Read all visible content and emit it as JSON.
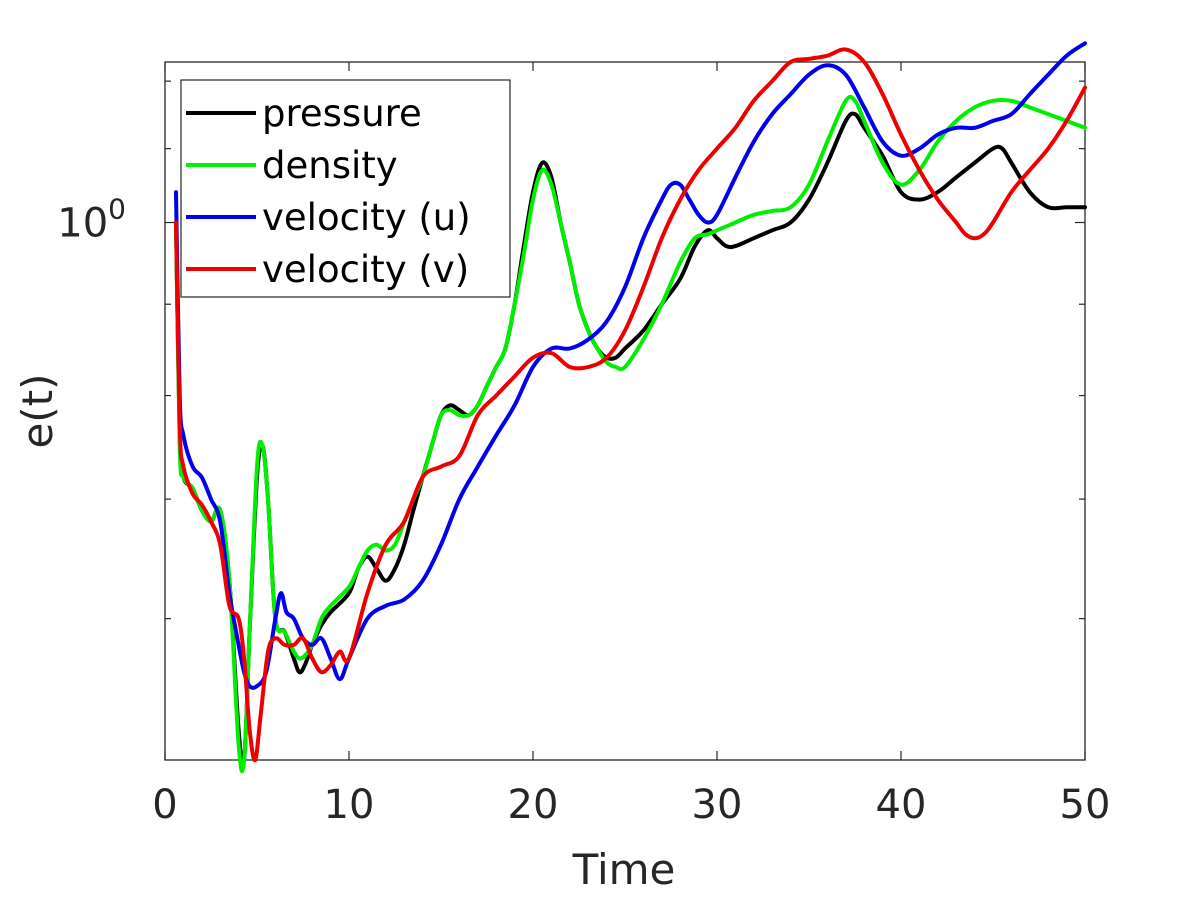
{
  "chart_data": {
    "type": "line",
    "title": "",
    "xlabel": "Time",
    "ylabel": "e(t)",
    "xlim": [
      0,
      50
    ],
    "ylim": [
      0.5,
      1.23
    ],
    "y_scale": "log",
    "grid": false,
    "legend_position": "top-left",
    "x_ticks": [
      0,
      10,
      20,
      30,
      40,
      50
    ],
    "x_tick_labels": [
      "0",
      "10",
      "20",
      "30",
      "40",
      "50"
    ],
    "y_tick_label": {
      "base": "10",
      "exponent": "0"
    },
    "y_tick_label_value": 1.0,
    "y_minor_ticks": [
      0.6,
      0.7,
      0.8,
      0.9,
      1.1,
      1.2
    ],
    "series": [
      {
        "name": "pressure",
        "color": "#000000",
        "x": [
          0.6,
          0.8,
          1.0,
          1.5,
          2.0,
          2.5,
          3.0,
          3.5,
          4.0,
          4.3,
          4.6,
          5.0,
          5.3,
          5.6,
          6.0,
          6.5,
          7.0,
          7.3,
          7.6,
          8.0,
          8.5,
          9.0,
          10.0,
          10.5,
          11.0,
          11.5,
          12.0,
          12.5,
          13.0,
          13.5,
          14.0,
          14.5,
          15.0,
          15.5,
          16.0,
          16.5,
          17.0,
          17.5,
          18.0,
          18.5,
          19.0,
          19.5,
          20.0,
          20.5,
          21.0,
          21.5,
          22.0,
          22.5,
          23.0,
          23.5,
          24.0,
          24.5,
          25.0,
          26.0,
          27.0,
          28.0,
          28.8,
          29.5,
          30.0,
          30.5,
          31.0,
          32.0,
          33.0,
          34.0,
          35.0,
          36.0,
          37.0,
          37.5,
          38.0,
          39.0,
          40.0,
          41.0,
          42.0,
          43.0,
          44.0,
          45.0,
          45.5,
          46.0,
          47.0,
          48.0,
          49.0,
          50.0
        ],
        "values": [
          1.0,
          0.76,
          0.72,
          0.71,
          0.69,
          0.68,
          0.69,
          0.63,
          0.52,
          0.5,
          0.59,
          0.72,
          0.75,
          0.7,
          0.6,
          0.59,
          0.57,
          0.56,
          0.565,
          0.58,
          0.595,
          0.605,
          0.62,
          0.64,
          0.65,
          0.64,
          0.63,
          0.64,
          0.66,
          0.69,
          0.72,
          0.75,
          0.78,
          0.79,
          0.785,
          0.78,
          0.79,
          0.81,
          0.83,
          0.85,
          0.9,
          0.97,
          1.04,
          1.08,
          1.06,
          1.0,
          0.95,
          0.9,
          0.87,
          0.85,
          0.84,
          0.84,
          0.85,
          0.87,
          0.9,
          0.93,
          0.97,
          0.99,
          0.98,
          0.97,
          0.97,
          0.98,
          0.99,
          1.0,
          1.03,
          1.08,
          1.14,
          1.15,
          1.13,
          1.09,
          1.04,
          1.03,
          1.04,
          1.06,
          1.08,
          1.1,
          1.1,
          1.08,
          1.04,
          1.02,
          1.02,
          1.02
        ]
      },
      {
        "name": "density",
        "color": "#00ee00",
        "x": [
          0.6,
          0.8,
          1.0,
          1.5,
          2.0,
          2.5,
          3.0,
          3.5,
          4.0,
          4.3,
          4.6,
          5.0,
          5.3,
          5.6,
          6.0,
          6.5,
          7.0,
          7.3,
          7.6,
          8.0,
          8.5,
          9.0,
          10.0,
          10.5,
          11.0,
          11.5,
          12.0,
          12.5,
          13.0,
          13.5,
          14.0,
          14.5,
          15.0,
          15.5,
          16.0,
          16.5,
          17.0,
          17.5,
          18.0,
          18.5,
          19.0,
          19.5,
          20.0,
          20.5,
          21.0,
          21.5,
          22.0,
          22.5,
          23.0,
          23.5,
          24.0,
          24.5,
          25.0,
          26.0,
          27.0,
          28.0,
          28.8,
          29.5,
          30.0,
          31.0,
          32.0,
          33.0,
          34.0,
          35.0,
          36.0,
          37.0,
          37.5,
          38.0,
          39.0,
          40.0,
          41.0,
          42.0,
          43.0,
          44.0,
          45.0,
          46.0,
          47.0,
          48.0,
          49.0,
          50.0
        ],
        "values": [
          1.0,
          0.75,
          0.72,
          0.71,
          0.69,
          0.68,
          0.69,
          0.63,
          0.51,
          0.5,
          0.59,
          0.73,
          0.75,
          0.7,
          0.6,
          0.59,
          0.575,
          0.57,
          0.572,
          0.58,
          0.6,
          0.61,
          0.625,
          0.64,
          0.655,
          0.66,
          0.655,
          0.66,
          0.68,
          0.7,
          0.72,
          0.75,
          0.78,
          0.785,
          0.78,
          0.78,
          0.79,
          0.81,
          0.83,
          0.85,
          0.9,
          0.96,
          1.03,
          1.07,
          1.05,
          1.0,
          0.95,
          0.9,
          0.87,
          0.85,
          0.835,
          0.83,
          0.83,
          0.86,
          0.9,
          0.95,
          0.98,
          0.985,
          0.99,
          1.0,
          1.01,
          1.015,
          1.02,
          1.05,
          1.11,
          1.17,
          1.17,
          1.14,
          1.08,
          1.05,
          1.07,
          1.11,
          1.14,
          1.16,
          1.17,
          1.17,
          1.16,
          1.15,
          1.14,
          1.13
        ]
      },
      {
        "name": "velocity (u)",
        "color": "#0000ee",
        "x": [
          0.6,
          0.8,
          1.0,
          1.5,
          2.0,
          2.5,
          3.0,
          3.5,
          4.0,
          4.3,
          4.6,
          5.0,
          5.5,
          6.0,
          6.3,
          6.6,
          7.0,
          7.5,
          8.0,
          8.5,
          9.0,
          9.5,
          10.0,
          11.0,
          12.0,
          13.0,
          14.0,
          15.0,
          16.0,
          17.0,
          18.0,
          19.0,
          20.0,
          21.0,
          22.0,
          23.0,
          24.0,
          25.0,
          26.0,
          27.0,
          27.5,
          28.0,
          28.5,
          29.0,
          29.5,
          30.0,
          31.0,
          32.0,
          33.0,
          34.0,
          35.0,
          36.0,
          37.0,
          38.0,
          39.0,
          40.0,
          41.0,
          42.0,
          43.0,
          44.0,
          45.0,
          46.0,
          47.0,
          48.0,
          49.0,
          50.0
        ],
        "values": [
          1.04,
          0.8,
          0.76,
          0.73,
          0.72,
          0.7,
          0.68,
          0.62,
          0.58,
          0.56,
          0.55,
          0.55,
          0.56,
          0.6,
          0.62,
          0.605,
          0.6,
          0.585,
          0.58,
          0.585,
          0.57,
          0.555,
          0.57,
          0.6,
          0.61,
          0.615,
          0.63,
          0.66,
          0.7,
          0.73,
          0.76,
          0.79,
          0.83,
          0.85,
          0.85,
          0.86,
          0.88,
          0.92,
          0.98,
          1.03,
          1.05,
          1.05,
          1.03,
          1.01,
          1.0,
          1.01,
          1.06,
          1.11,
          1.15,
          1.18,
          1.21,
          1.225,
          1.21,
          1.16,
          1.11,
          1.09,
          1.1,
          1.12,
          1.13,
          1.13,
          1.14,
          1.15,
          1.18,
          1.21,
          1.24,
          1.26
        ]
      },
      {
        "name": "velocity (v)",
        "color": "#ee0000",
        "x": [
          0.6,
          0.8,
          1.0,
          1.5,
          2.0,
          2.5,
          3.0,
          3.5,
          4.0,
          4.3,
          4.6,
          4.9,
          5.2,
          5.6,
          6.0,
          6.5,
          7.0,
          7.5,
          8.0,
          8.5,
          9.0,
          9.5,
          10.0,
          11.0,
          12.0,
          13.0,
          14.0,
          15.0,
          16.0,
          17.0,
          18.0,
          19.0,
          20.0,
          21.0,
          22.0,
          23.0,
          24.0,
          25.0,
          26.0,
          27.0,
          28.0,
          29.0,
          30.0,
          31.0,
          32.0,
          33.0,
          34.0,
          35.0,
          36.0,
          37.0,
          38.0,
          39.0,
          40.0,
          41.0,
          42.0,
          43.0,
          43.5,
          44.0,
          44.5,
          45.0,
          46.0,
          47.0,
          48.0,
          49.0,
          50.0
        ],
        "values": [
          1.0,
          0.77,
          0.73,
          0.705,
          0.695,
          0.68,
          0.66,
          0.61,
          0.6,
          0.57,
          0.52,
          0.5,
          0.53,
          0.575,
          0.585,
          0.58,
          0.58,
          0.585,
          0.57,
          0.56,
          0.565,
          0.575,
          0.57,
          0.62,
          0.66,
          0.68,
          0.72,
          0.73,
          0.74,
          0.78,
          0.8,
          0.82,
          0.84,
          0.845,
          0.83,
          0.83,
          0.84,
          0.87,
          0.92,
          0.98,
          1.03,
          1.07,
          1.1,
          1.13,
          1.17,
          1.2,
          1.23,
          1.235,
          1.24,
          1.25,
          1.23,
          1.18,
          1.12,
          1.07,
          1.03,
          1.0,
          0.985,
          0.98,
          0.985,
          1.0,
          1.04,
          1.07,
          1.1,
          1.14,
          1.19
        ]
      }
    ]
  }
}
